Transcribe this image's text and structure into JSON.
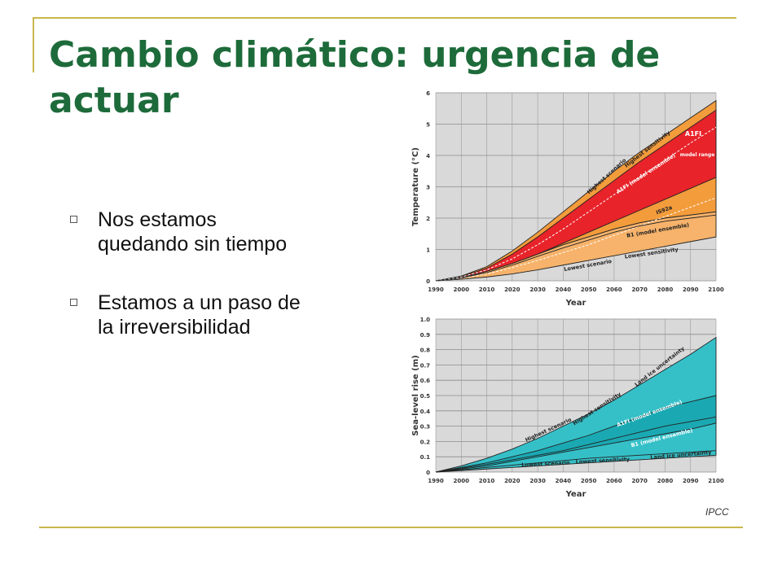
{
  "slide": {
    "title_lines": [
      "Cambio climático: urgencia de",
      "actuar"
    ],
    "bullets": [
      {
        "lines": [
          "Nos estamos",
          "quedando sin tiempo"
        ]
      },
      {
        "lines": [
          "Estamos a un paso de",
          "la irreversibilidad"
        ]
      }
    ],
    "credit": "IPCC",
    "accent_color": "#1d6b3a",
    "frame_color": "#c9b74a"
  },
  "chart_data": [
    {
      "type": "area",
      "xlabel": "Year",
      "ylabel": "Temperature (°C)",
      "x_ticks": [
        1990,
        2000,
        2010,
        2020,
        2030,
        2040,
        2050,
        2060,
        2070,
        2080,
        2090,
        2100
      ],
      "y_ticks": [
        0,
        1,
        2,
        3,
        4,
        5,
        6
      ],
      "xlim": [
        1990,
        2100
      ],
      "ylim": [
        0,
        6
      ],
      "grid": true,
      "x": [
        1990,
        2000,
        2010,
        2020,
        2030,
        2040,
        2050,
        2060,
        2070,
        2080,
        2090,
        2100
      ],
      "bands": [
        {
          "fill": "#f39c3c",
          "upper": [
            0,
            0.15,
            0.45,
            0.95,
            1.55,
            2.2,
            2.85,
            3.5,
            4.1,
            4.65,
            5.2,
            5.75
          ],
          "lower": [
            0,
            0.1,
            0.3,
            0.55,
            0.85,
            1.15,
            1.4,
            1.65,
            1.85,
            2.0,
            2.1,
            2.2
          ]
        },
        {
          "fill": "#e8232a",
          "upper": [
            0,
            0.13,
            0.4,
            0.85,
            1.4,
            2.0,
            2.6,
            3.2,
            3.8,
            4.35,
            4.9,
            5.45
          ],
          "lower": [
            0,
            0.1,
            0.3,
            0.55,
            0.85,
            1.2,
            1.55,
            1.9,
            2.25,
            2.6,
            2.95,
            3.3
          ]
        },
        {
          "fill": "#f7b36b",
          "upper": [
            0,
            0.1,
            0.3,
            0.55,
            0.85,
            1.15,
            1.4,
            1.65,
            1.85,
            2.0,
            2.1,
            2.2
          ],
          "lower": [
            0,
            0.05,
            0.12,
            0.22,
            0.35,
            0.5,
            0.65,
            0.8,
            0.95,
            1.1,
            1.25,
            1.4
          ]
        }
      ],
      "dashed_lines": [
        {
          "values": [
            0,
            0.12,
            0.35,
            0.7,
            1.15,
            1.65,
            2.2,
            2.75,
            3.3,
            3.85,
            4.4,
            4.9
          ]
        },
        {
          "values": [
            0,
            0.08,
            0.22,
            0.42,
            0.65,
            0.9,
            1.15,
            1.45,
            1.75,
            2.05,
            2.35,
            2.65
          ]
        }
      ],
      "solid_lines": [
        {
          "values": [
            0,
            0.09,
            0.26,
            0.5,
            0.78,
            1.05,
            1.3,
            1.55,
            1.75,
            1.9,
            2.0,
            2.1
          ]
        }
      ],
      "annotations": [
        "A1FI",
        "model range",
        "Highest sensitivity",
        "Highest scenario",
        "A1FI (model ensemble)",
        "IS92a",
        "B1 (model ensemble)",
        "Lowest sensitivity",
        "Lowest scenario"
      ]
    },
    {
      "type": "area",
      "xlabel": "Year",
      "ylabel": "Sea-level rise (m)",
      "x_ticks": [
        1990,
        2000,
        2010,
        2020,
        2030,
        2040,
        2050,
        2060,
        2070,
        2080,
        2090,
        2100
      ],
      "y_ticks": [
        0,
        0.1,
        0.2,
        0.3,
        0.4,
        0.5,
        0.6,
        0.7,
        0.8,
        0.9,
        1.0
      ],
      "xlim": [
        1990,
        2100
      ],
      "ylim": [
        0,
        1.0
      ],
      "grid": true,
      "x": [
        1990,
        2000,
        2010,
        2020,
        2030,
        2040,
        2050,
        2060,
        2070,
        2080,
        2090,
        2100
      ],
      "bands": [
        {
          "fill": "#35c0c8",
          "upper": [
            0,
            0.04,
            0.09,
            0.15,
            0.22,
            0.3,
            0.38,
            0.47,
            0.57,
            0.67,
            0.77,
            0.88
          ],
          "lower": [
            0,
            0.01,
            0.02,
            0.03,
            0.04,
            0.05,
            0.06,
            0.07,
            0.08,
            0.09,
            0.1,
            0.11
          ]
        },
        {
          "fill": "#1aa9b3",
          "upper": [
            0,
            0.03,
            0.06,
            0.1,
            0.14,
            0.19,
            0.24,
            0.3,
            0.36,
            0.42,
            0.46,
            0.5
          ],
          "lower": [
            0,
            0.02,
            0.04,
            0.07,
            0.1,
            0.13,
            0.16,
            0.19,
            0.22,
            0.25,
            0.28,
            0.32
          ]
        }
      ],
      "solid_lines": [
        {
          "values": [
            0,
            0.025,
            0.05,
            0.08,
            0.11,
            0.14,
            0.18,
            0.22,
            0.26,
            0.3,
            0.33,
            0.36
          ]
        },
        {
          "values": [
            0,
            0.015,
            0.03,
            0.045,
            0.06,
            0.075,
            0.09,
            0.1,
            0.11,
            0.12,
            0.13,
            0.14
          ]
        }
      ],
      "annotations": [
        "Land ice uncertainty",
        "Highest sensitivity",
        "Highest scenario",
        "A1FI (model ensemble)",
        "B1 (model ensemble)",
        "Lowest scenario",
        "Lowest sensitivity",
        "Land ice uncertainty"
      ]
    }
  ]
}
